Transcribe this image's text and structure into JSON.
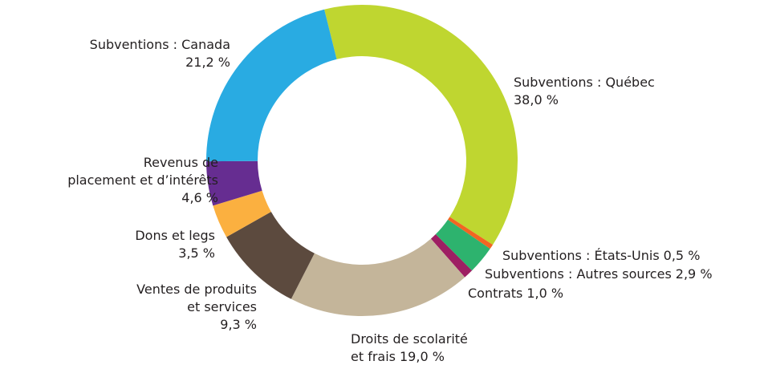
{
  "chart_data": {
    "type": "donut",
    "categories": [
      "Subventions : Québec",
      "Subventions : États-Unis",
      "Subventions : Autres sources",
      "Contrats",
      "Droits de scolarité\net frais",
      "Ventes de produits\net services",
      "Dons et legs",
      "Revenus de\nplacement et d’intérêts",
      "Subventions : Canada"
    ],
    "values": [
      38.0,
      0.5,
      2.9,
      1.0,
      19.0,
      9.3,
      3.5,
      4.6,
      21.2
    ],
    "value_labels": [
      "38,0 %",
      "0,5 %",
      "2,9 %",
      "1,0 %",
      "19,0 %",
      "9,3 %",
      "3,5 %",
      "4,6 %",
      "21,2 %"
    ],
    "colors": [
      "#bfd630",
      "#f26522",
      "#2db36e",
      "#9e1f63",
      "#c4b59a",
      "#5c4a3e",
      "#fbb040",
      "#662d91",
      "#29abe2"
    ]
  }
}
